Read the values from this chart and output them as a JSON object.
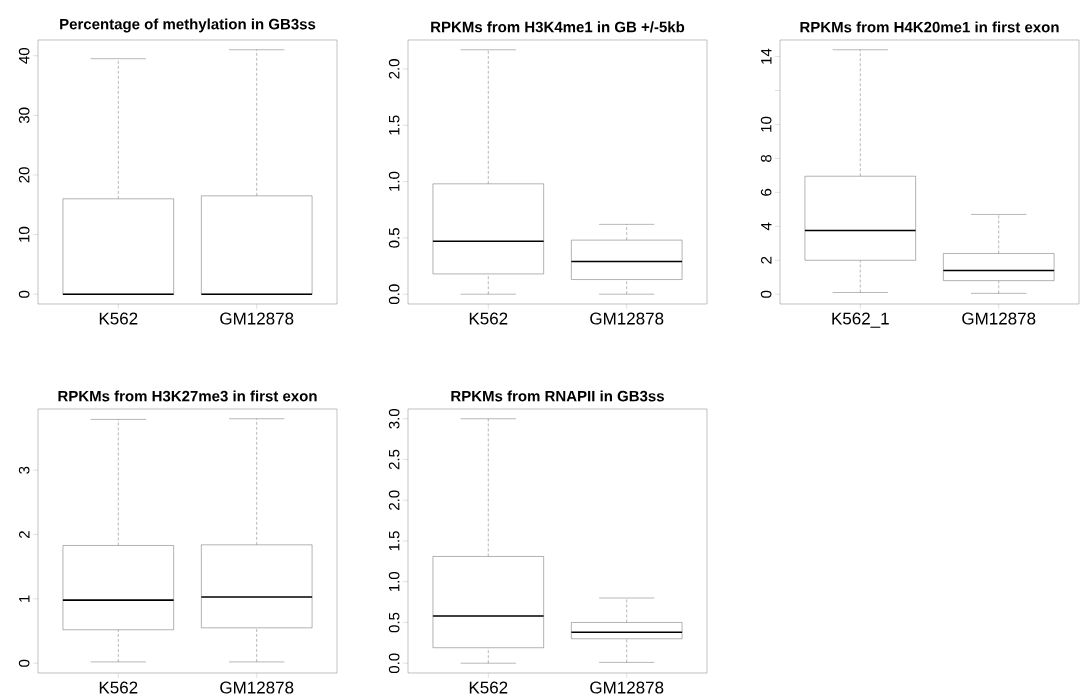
{
  "chart_data": [
    {
      "type": "box",
      "title": "Percentage of methylation in GB3ss",
      "categories": [
        "K562",
        "GM12878"
      ],
      "boxes": [
        {
          "low": 0,
          "q1": 0,
          "median": 0,
          "q3": 16,
          "high": 39.5
        },
        {
          "low": 0,
          "q1": 0,
          "median": 0,
          "q3": 16.5,
          "high": 41
        }
      ],
      "ylim": [
        -1.64,
        42.64
      ],
      "yticks": [
        0,
        10,
        20,
        30,
        40
      ]
    },
    {
      "type": "box",
      "title": "RPKMs from H3K4me1 in GB +/-5kb",
      "categories": [
        "K562",
        "GM12878"
      ],
      "boxes": [
        {
          "low": 0,
          "q1": 0.18,
          "median": 0.47,
          "q3": 0.98,
          "high": 2.17
        },
        {
          "low": 0,
          "q1": 0.13,
          "median": 0.29,
          "q3": 0.48,
          "high": 0.62
        }
      ],
      "ylim": [
        -0.087,
        2.257
      ],
      "yticks": [
        {
          "value": 0,
          "label": "0.0"
        },
        {
          "value": 0.5,
          "label": "0.5"
        },
        {
          "value": 1,
          "label": "1.0"
        },
        {
          "value": 1.5,
          "label": "1.5"
        },
        {
          "value": 2,
          "label": "2.0"
        }
      ]
    },
    {
      "type": "box",
      "title": "RPKMs from H4K20me1 in first exon",
      "categories": [
        "K562_1",
        "GM12878"
      ],
      "boxes": [
        {
          "low": 0.1,
          "q1": 2.0,
          "median": 3.75,
          "q3": 6.95,
          "high": 14.4
        },
        {
          "low": 0.05,
          "q1": 0.8,
          "median": 1.4,
          "q3": 2.4,
          "high": 4.7
        }
      ],
      "ylim": [
        -0.576,
        14.976
      ],
      "yticks": [
        0,
        2,
        4,
        6,
        8,
        10,
        {
          "value": 12,
          "label": null
        },
        14
      ]
    },
    {
      "type": "box",
      "title": "RPKMs from H3K27me3 in first exon",
      "categories": [
        "K562",
        "GM12878"
      ],
      "boxes": [
        {
          "low": 0.02,
          "q1": 0.52,
          "median": 0.98,
          "q3": 1.83,
          "high": 3.79
        },
        {
          "low": 0.02,
          "q1": 0.55,
          "median": 1.03,
          "q3": 1.84,
          "high": 3.8
        }
      ],
      "ylim": [
        -0.152,
        3.952
      ],
      "yticks": [
        0,
        1,
        2,
        3
      ]
    },
    {
      "type": "box",
      "title": "RPKMs from RNAPII in GB3ss",
      "categories": [
        "K562",
        "GM12878"
      ],
      "boxes": [
        {
          "low": 0,
          "q1": 0.19,
          "median": 0.58,
          "q3": 1.31,
          "high": 3.0
        },
        {
          "low": 0.01,
          "q1": 0.3,
          "median": 0.38,
          "q3": 0.5,
          "high": 0.8
        }
      ],
      "ylim": [
        -0.12,
        3.12
      ],
      "yticks": [
        {
          "value": 0,
          "label": "0.0"
        },
        {
          "value": 0.5,
          "label": "0.5"
        },
        {
          "value": 1,
          "label": "1.0"
        },
        {
          "value": 1.5,
          "label": "1.5"
        },
        {
          "value": 2,
          "label": "2.0"
        },
        {
          "value": 2.5,
          "label": "2.5"
        },
        {
          "value": 3,
          "label": "3.0"
        }
      ]
    }
  ]
}
